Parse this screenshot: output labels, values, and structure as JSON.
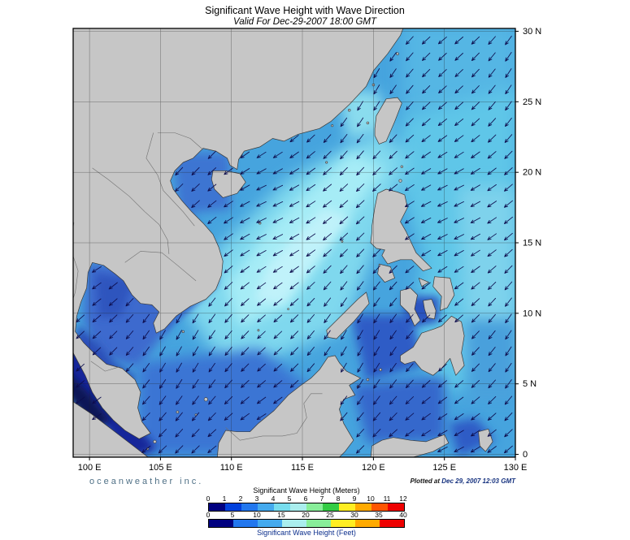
{
  "header": {
    "title": "Significant Wave Height with Wave Direction",
    "subtitle": "Valid For Dec-29-2007 18:00 GMT"
  },
  "footer": {
    "branding": "oceanweather inc.",
    "plotted_label": "Plotted at",
    "plotted_value": "Dec 29, 2007 12:03 GMT"
  },
  "axes": {
    "x_ticks": [
      {
        "value": 100,
        "label": "100 E"
      },
      {
        "value": 105,
        "label": "105 E"
      },
      {
        "value": 110,
        "label": "110 E"
      },
      {
        "value": 115,
        "label": "115 E"
      },
      {
        "value": 120,
        "label": "120 E"
      },
      {
        "value": 125,
        "label": "125 E"
      },
      {
        "value": 130,
        "label": "130 E"
      }
    ],
    "y_ticks": [
      {
        "value": 30,
        "label": "30 N"
      },
      {
        "value": 25,
        "label": "25 N"
      },
      {
        "value": 20,
        "label": "20 N"
      },
      {
        "value": 15,
        "label": "15 N"
      },
      {
        "value": 10,
        "label": "10 N"
      },
      {
        "value": 5,
        "label": "5 N"
      },
      {
        "value": 0,
        "label": "0"
      }
    ]
  },
  "legend": {
    "meters_title": "Significant Wave Height (Meters)",
    "feet_title": "Significant Wave Height (Feet)",
    "meters_ticks": [
      "0",
      "1",
      "2",
      "3",
      "4",
      "5",
      "6",
      "7",
      "8",
      "9",
      "10",
      "11",
      "12"
    ],
    "feet_ticks": [
      "0",
      "5",
      "10",
      "15",
      "20",
      "25",
      "30",
      "35",
      "40"
    ],
    "colors": [
      "#000080",
      "#0040dd",
      "#2277ee",
      "#44aaee",
      "#77ddee",
      "#aaeeee",
      "#88ee99",
      "#33cc44",
      "#ffee22",
      "#ffaa00",
      "#ff5500",
      "#ee0000"
    ]
  },
  "map": {
    "lon_min": 98.85,
    "lon_max": 130,
    "lat_min": -0.2,
    "lat_max": 30.2,
    "grid_lon": [
      100,
      105,
      110,
      115,
      120,
      125,
      130
    ],
    "grid_lat": [
      0,
      5,
      10,
      15,
      20,
      25,
      30
    ],
    "sea_base_color": "#46a4de",
    "land_color": "#c6c6c6",
    "land_edge_color": "#3a3a3a",
    "grid_color": "#222222",
    "arrow_color": "#0d0d4d",
    "frame_color": "#000000"
  }
}
